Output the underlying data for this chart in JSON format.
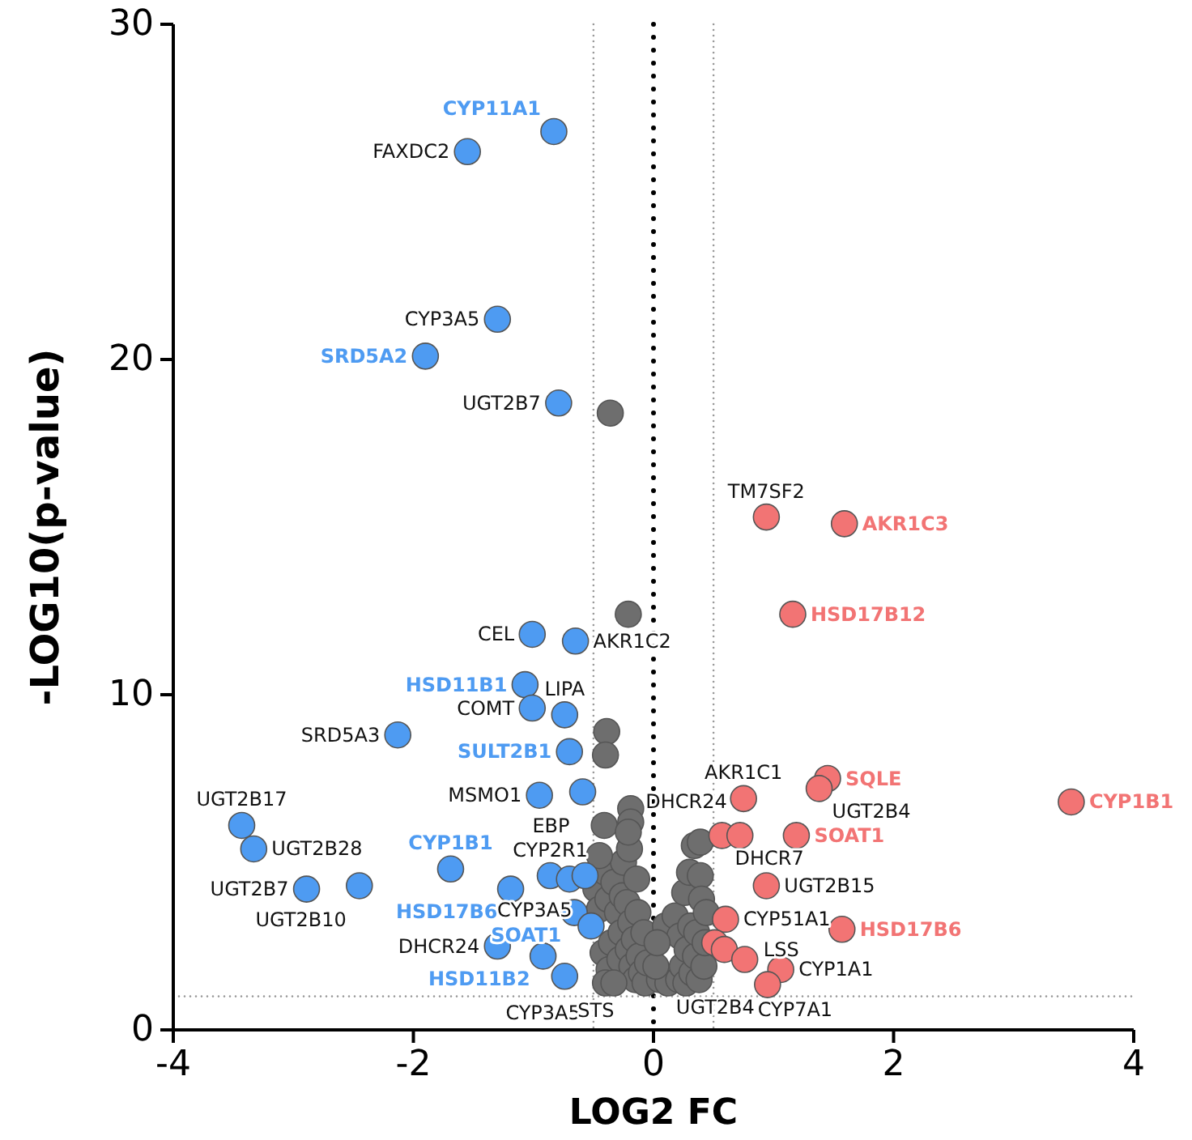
{
  "chart_data": {
    "type": "scatter",
    "xlabel": "LOG2 FC",
    "ylabel": "-LOG10(p-value)",
    "xlim": [
      -4,
      4
    ],
    "xticks": [
      -4,
      -2,
      0,
      2,
      4
    ],
    "ylim": [
      0,
      30
    ],
    "yticks": [
      0,
      10,
      20,
      30
    ],
    "grid": false,
    "marker": "circle",
    "ref_lines": [
      {
        "axis": "x",
        "value": 0,
        "color": "#000000",
        "line_style": "dotted"
      },
      {
        "axis": "x",
        "value": -0.5,
        "color": "#999999",
        "line_style": "dotted"
      },
      {
        "axis": "x",
        "value": 0.5,
        "color": "#999999",
        "line_style": "dotted"
      },
      {
        "axis": "y",
        "value": 1,
        "color": "#999999",
        "line_style": "dotted"
      }
    ],
    "annotations": [
      {
        "text": "FAXDC2",
        "x": -1.55,
        "y": 26.2
      },
      {
        "text": "CYP3A5",
        "x": -1.3,
        "y": 21.2
      },
      {
        "text": "UGT2B7",
        "x": -0.79,
        "y": 18.7
      },
      {
        "text": "AKR1C2",
        "x": -0.65,
        "y": 11.6
      },
      {
        "text": "CEL",
        "x": -1.01,
        "y": 11.8
      },
      {
        "text": "LIPA",
        "x": -0.74,
        "y": 9.4
      },
      {
        "text": "COMT",
        "x": -1.01,
        "y": 9.6
      },
      {
        "text": "SRD5A3",
        "x": -2.13,
        "y": 8.8
      },
      {
        "text": "UGT2B17",
        "x": -3.43,
        "y": 6.1
      },
      {
        "text": "UGT2B28",
        "x": -3.33,
        "y": 5.4
      },
      {
        "text": "UGT2B7",
        "x": -2.89,
        "y": 4.2
      },
      {
        "text": "UGT2B10",
        "x": -2.45,
        "y": 4.3
      },
      {
        "text": "MSMO1",
        "x": -0.95,
        "y": 7
      },
      {
        "text": "EBP",
        "x": -0.59,
        "y": 7.1
      },
      {
        "text": "CYP2R1",
        "x": -0.86,
        "y": 4.6
      },
      {
        "text": "CYP3A5",
        "x": -0.57,
        "y": 4.6
      },
      {
        "text": "DHCR24",
        "x": -1.3,
        "y": 2.5
      },
      {
        "text": "CYP3A5",
        "x": -0.92,
        "y": 2.2
      },
      {
        "text": "STS",
        "x": -0.74,
        "y": 1.6
      },
      {
        "text": "TM7SF2",
        "x": 0.94,
        "y": 15.3
      },
      {
        "text": "UGT2B4",
        "x": 1.38,
        "y": 7.2
      },
      {
        "text": "AKR1C1",
        "x": 0.75,
        "y": 6.9
      },
      {
        "text": "DHCR7",
        "x": 0.57,
        "y": 5.8
      },
      {
        "text": "DHCR24",
        "x": 0.72,
        "y": 5.8
      },
      {
        "text": "UGT2B15",
        "x": 0.94,
        "y": 4.3
      },
      {
        "text": "CYP51A1",
        "x": 0.6,
        "y": 3.3
      },
      {
        "text": "CYP7A1",
        "x": 0.76,
        "y": 2.1
      },
      {
        "text": "CYP1A1",
        "x": 1.06,
        "y": 1.8
      },
      {
        "text": "UGT2B4",
        "x": 0.95,
        "y": 1.35
      },
      {
        "text": "LSS",
        "x": 0.59,
        "y": 2.4
      }
    ],
    "series": [
      {
        "color": "#6e6e6e",
        "x": [
          -0.48,
          -0.45,
          -0.42,
          -0.4,
          -0.38,
          -0.37,
          -0.35,
          -0.33,
          -0.3,
          -0.28,
          -0.27,
          -0.26,
          -0.22,
          -0.21,
          -0.19,
          -0.18,
          -0.16,
          -0.15,
          -0.13,
          -0.12,
          -0.1,
          -0.08,
          -0.07,
          -0.05,
          -0.4,
          -0.33,
          -0.25,
          -0.2,
          -0.14,
          -0.45,
          0.05,
          0.1,
          0.12,
          0.18,
          0.21,
          0.22,
          0.24,
          0.26,
          0.27,
          0.28,
          0.3,
          0.31,
          0.32,
          0.34,
          0.35,
          0.36,
          0.38,
          0.39,
          0.39,
          0.4,
          0.42,
          0.43,
          0.44,
          0.02,
          0.03,
          -0.36,
          -0.21,
          -0.39,
          -0.4,
          -0.41,
          -0.19,
          -0.19,
          -0.21
        ],
        "values": [
          4.2,
          3.6,
          2.3,
          4.7,
          3.9,
          1.8,
          2.6,
          4.4,
          3.5,
          2.1,
          2.9,
          4,
          3.8,
          2.4,
          3.2,
          1.9,
          2.7,
          1.5,
          3.5,
          2.2,
          1.7,
          2.9,
          1.4,
          2,
          1.4,
          1.4,
          5,
          5.4,
          4.5,
          5.2,
          1.5,
          3.1,
          1.4,
          3.4,
          1.5,
          2.8,
          1.9,
          4.1,
          1.4,
          2.4,
          4.7,
          3.1,
          1.7,
          5.5,
          2.2,
          2.9,
          1.5,
          4.6,
          5.6,
          3.9,
          1.9,
          2.6,
          3.5,
          1.9,
          2.6,
          18.4,
          12.4,
          8.9,
          8.2,
          6.1,
          6.6,
          6.2,
          5.9
        ]
      },
      {
        "color": "#4e9bf2",
        "x": [
          -0.83,
          -1.55,
          -1.3,
          -1.9,
          -0.79,
          -1.01,
          -0.65,
          -1.07,
          -1.01,
          -0.74,
          -2.13,
          -0.7,
          -3.43,
          -3.33,
          -0.95,
          -0.59,
          -1.69,
          -2.89,
          -2.45,
          -1.19,
          -0.86,
          -0.7,
          -0.57,
          -0.66,
          -0.52,
          -0.92,
          -1.3,
          -0.74
        ],
        "values": [
          26.8,
          26.2,
          21.2,
          20.1,
          18.7,
          11.8,
          11.6,
          10.3,
          9.6,
          9.4,
          8.8,
          8.3,
          6.1,
          5.4,
          7,
          7.1,
          4.8,
          4.2,
          4.3,
          4.2,
          4.6,
          4.5,
          4.6,
          3.5,
          3.1,
          2.2,
          2.5,
          1.6
        ],
        "value_labels": [
          "CYP11A1",
          null,
          null,
          "SRD5A2",
          null,
          null,
          null,
          "HSD11B1",
          null,
          null,
          null,
          "SULT2B1",
          null,
          null,
          null,
          null,
          "CYP1B1",
          null,
          null,
          "HSD17B6",
          null,
          null,
          null,
          "SOAT1",
          null,
          "HSD11B2",
          null,
          null
        ]
      },
      {
        "color": "#f27474",
        "x": [
          0.94,
          1.59,
          1.16,
          1.45,
          1.38,
          3.48,
          0.75,
          0.57,
          0.72,
          1.19,
          0.94,
          0.6,
          1.57,
          0.51,
          0.59,
          0.76,
          1.06,
          0.95
        ],
        "values": [
          15.3,
          15.1,
          12.4,
          7.5,
          7.2,
          6.8,
          6.9,
          5.8,
          5.8,
          5.8,
          4.3,
          3.3,
          3,
          2.6,
          2.4,
          2.1,
          1.8,
          1.35
        ],
        "value_labels": [
          null,
          "AKR1C3",
          "HSD17B12",
          "SQLE",
          null,
          "CYP1B1",
          null,
          null,
          null,
          "SOAT1",
          null,
          null,
          "HSD17B6",
          null,
          null,
          null,
          null,
          null
        ]
      }
    ]
  }
}
